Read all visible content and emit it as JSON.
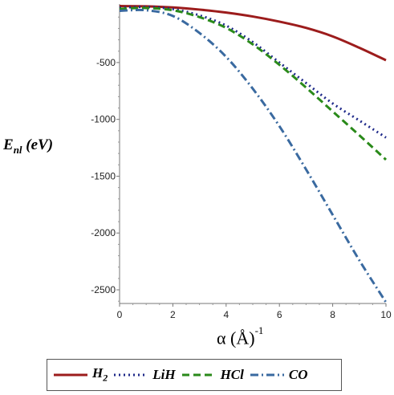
{
  "chart_data": {
    "type": "line",
    "xlabel": "α (Å)",
    "xlabel_exponent": "-1",
    "ylabel": "E",
    "ylabel_sub": "nl",
    "ylabel_unit": "(eV)",
    "xlim": [
      0,
      10
    ],
    "ylim": [
      -2620,
      15
    ],
    "x_ticks": [
      "0",
      "2",
      "4",
      "6",
      "8",
      "10"
    ],
    "y_ticks": [
      "-500",
      "-1000",
      "-1500",
      "-2000",
      "-2500"
    ],
    "y_tick_values": [
      -500,
      -1000,
      -1500,
      -2000,
      -2500
    ],
    "x_tick_values": [
      0,
      2,
      4,
      6,
      8,
      10
    ],
    "grid": false,
    "legend_position": "bottom",
    "x": [
      0,
      1,
      2,
      3,
      4,
      5,
      6,
      7,
      8,
      9,
      10
    ],
    "series": [
      {
        "name": "H",
        "name_sub": "2",
        "color": "#9c1c1c",
        "dash": "solid",
        "values": [
          -3,
          -5,
          -15,
          -34,
          -60,
          -95,
          -140,
          -195,
          -270,
          -370,
          -480
        ]
      },
      {
        "name": "LiH",
        "color": "#1f2a8a",
        "dash": "dotted",
        "values": [
          -18,
          -10,
          -30,
          -85,
          -175,
          -320,
          -500,
          -680,
          -860,
          -1010,
          -1160
        ]
      },
      {
        "name": "HCl",
        "color": "#2a8a1a",
        "dash": "dashed",
        "values": [
          -28,
          -20,
          -40,
          -100,
          -195,
          -340,
          -520,
          -720,
          -930,
          -1140,
          -1355
        ]
      },
      {
        "name": "CO",
        "color": "#3a6aa0",
        "dash": "dashdot",
        "values": [
          -45,
          -40,
          -90,
          -240,
          -450,
          -730,
          -1060,
          -1440,
          -1840,
          -2240,
          -2610
        ]
      }
    ]
  }
}
